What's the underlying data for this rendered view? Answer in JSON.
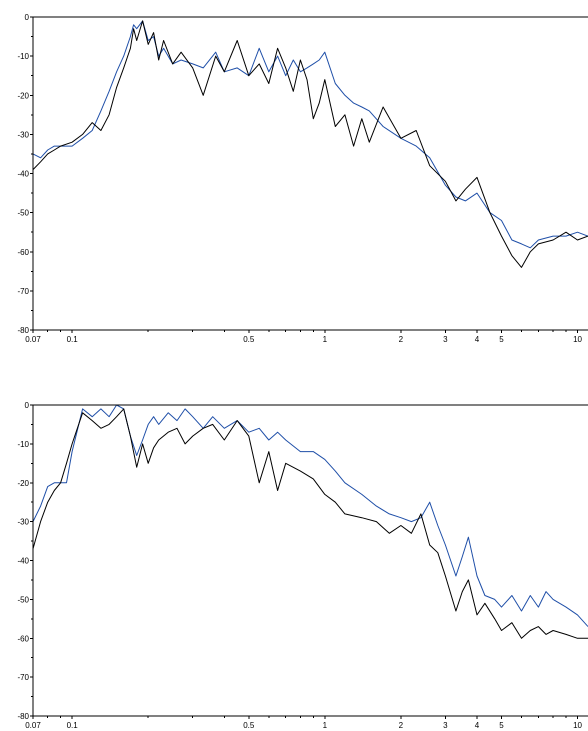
{
  "chart_data": [
    {
      "type": "line",
      "xscale": "log",
      "xlim": [
        0.07,
        11
      ],
      "ylim": [
        -80,
        0
      ],
      "x_ticks": [
        0.07,
        0.1,
        0.5,
        1,
        2,
        3,
        4,
        5,
        10
      ],
      "x_tick_labels": [
        "0.07",
        "0.1",
        "0.5",
        "1",
        "2",
        "3",
        "4",
        "5",
        "10"
      ],
      "y_ticks": [
        0,
        -10,
        -20,
        -30,
        -40,
        -50,
        -60,
        -70,
        -80
      ],
      "y_tick_labels": [
        "0",
        "-10",
        "-20",
        "-30",
        "-40",
        "-50",
        "-60",
        "-70",
        "-80"
      ],
      "grid": false,
      "series": [
        {
          "color": "#1f4fa8",
          "x": [
            0.07,
            0.075,
            0.08,
            0.085,
            0.09,
            0.1,
            0.11,
            0.12,
            0.13,
            0.14,
            0.15,
            0.16,
            0.17,
            0.175,
            0.18,
            0.19,
            0.2,
            0.21,
            0.22,
            0.23,
            0.25,
            0.27,
            0.3,
            0.33,
            0.37,
            0.4,
            0.45,
            0.5,
            0.55,
            0.6,
            0.65,
            0.7,
            0.75,
            0.8,
            0.85,
            0.9,
            0.95,
            1.0,
            1.1,
            1.2,
            1.3,
            1.4,
            1.5,
            1.7,
            2.0,
            2.3,
            2.6,
            3.0,
            3.3,
            3.6,
            4.0,
            4.5,
            5.0,
            5.5,
            6.0,
            6.5,
            7.0,
            8.0,
            9.0,
            10.0,
            11.0
          ],
          "y": [
            -35,
            -36,
            -34,
            -33,
            -33,
            -33,
            -31,
            -29,
            -24,
            -19,
            -14,
            -10,
            -5,
            -2,
            -3,
            -1,
            -6,
            -5,
            -10,
            -8,
            -12,
            -11,
            -12,
            -13,
            -9,
            -14,
            -13,
            -15,
            -8,
            -14,
            -10,
            -15,
            -11,
            -14,
            -13,
            -12,
            -11,
            -9,
            -17,
            -20,
            -22,
            -23,
            -24,
            -28,
            -31,
            -33,
            -36,
            -43,
            -46,
            -47,
            -45,
            -50,
            -52,
            -57,
            -58,
            -59,
            -57,
            -56,
            -56,
            -55,
            -56
          ]
        },
        {
          "color": "#000000",
          "x": [
            0.07,
            0.075,
            0.08,
            0.085,
            0.09,
            0.1,
            0.11,
            0.12,
            0.13,
            0.14,
            0.15,
            0.16,
            0.17,
            0.175,
            0.18,
            0.19,
            0.2,
            0.21,
            0.22,
            0.23,
            0.25,
            0.27,
            0.3,
            0.33,
            0.37,
            0.4,
            0.45,
            0.5,
            0.55,
            0.6,
            0.65,
            0.7,
            0.75,
            0.8,
            0.85,
            0.9,
            0.95,
            1.0,
            1.1,
            1.2,
            1.3,
            1.4,
            1.5,
            1.7,
            2.0,
            2.3,
            2.6,
            3.0,
            3.3,
            3.6,
            4.0,
            4.5,
            5.0,
            5.5,
            6.0,
            6.5,
            7.0,
            8.0,
            9.0,
            10.0,
            11.0
          ],
          "y": [
            -39,
            -37,
            -35,
            -34,
            -33,
            -32,
            -30,
            -27,
            -29,
            -25,
            -18,
            -13,
            -8,
            -3,
            -6,
            -1,
            -7,
            -4,
            -11,
            -6,
            -12,
            -9,
            -13,
            -20,
            -10,
            -14,
            -6,
            -15,
            -12,
            -17,
            -8,
            -13,
            -19,
            -11,
            -16,
            -26,
            -22,
            -16,
            -28,
            -25,
            -33,
            -26,
            -32,
            -23,
            -31,
            -29,
            -38,
            -42,
            -47,
            -44,
            -41,
            -50,
            -56,
            -61,
            -64,
            -60,
            -58,
            -57,
            -55,
            -57,
            -56
          ]
        }
      ]
    },
    {
      "type": "line",
      "xscale": "log",
      "xlim": [
        0.07,
        11
      ],
      "ylim": [
        -80,
        0
      ],
      "x_ticks": [
        0.07,
        0.1,
        0.5,
        1,
        2,
        3,
        4,
        5,
        10
      ],
      "x_tick_labels": [
        "0.07",
        "0.1",
        "0.5",
        "1",
        "2",
        "3",
        "4",
        "5",
        "10"
      ],
      "y_ticks": [
        0,
        -10,
        -20,
        -30,
        -40,
        -50,
        -60,
        -70,
        -80
      ],
      "y_tick_labels": [
        "0",
        "-10",
        "-20",
        "-30",
        "-40",
        "-50",
        "-60",
        "-70",
        "-80"
      ],
      "grid": false,
      "series": [
        {
          "color": "#1f4fa8",
          "x": [
            0.07,
            0.075,
            0.08,
            0.085,
            0.09,
            0.095,
            0.1,
            0.11,
            0.12,
            0.13,
            0.14,
            0.15,
            0.16,
            0.17,
            0.18,
            0.19,
            0.2,
            0.21,
            0.22,
            0.24,
            0.26,
            0.28,
            0.3,
            0.33,
            0.36,
            0.4,
            0.45,
            0.5,
            0.55,
            0.6,
            0.65,
            0.7,
            0.8,
            0.9,
            1.0,
            1.1,
            1.2,
            1.4,
            1.6,
            1.8,
            2.0,
            2.2,
            2.4,
            2.6,
            2.8,
            3.0,
            3.3,
            3.5,
            3.7,
            4.0,
            4.3,
            4.7,
            5.0,
            5.5,
            6.0,
            6.5,
            7.0,
            7.5,
            8.0,
            9.0,
            10.0,
            11.0
          ],
          "y": [
            -30,
            -26,
            -21,
            -20,
            -20,
            -20,
            -12,
            -1,
            -3,
            -1,
            -3,
            0,
            -1,
            -8,
            -13,
            -9,
            -5,
            -3,
            -5,
            -2,
            -4,
            -1,
            -3,
            -6,
            -3,
            -6,
            -4,
            -7,
            -6,
            -9,
            -7,
            -9,
            -12,
            -12,
            -14,
            -17,
            -20,
            -23,
            -26,
            -28,
            -29,
            -30,
            -29,
            -25,
            -31,
            -36,
            -44,
            -39,
            -34,
            -44,
            -49,
            -50,
            -52,
            -49,
            -53,
            -49,
            -52,
            -48,
            -50,
            -52,
            -54,
            -57
          ]
        },
        {
          "color": "#000000",
          "x": [
            0.07,
            0.075,
            0.08,
            0.085,
            0.09,
            0.095,
            0.1,
            0.11,
            0.12,
            0.13,
            0.14,
            0.15,
            0.16,
            0.17,
            0.18,
            0.19,
            0.2,
            0.21,
            0.22,
            0.24,
            0.26,
            0.28,
            0.3,
            0.33,
            0.36,
            0.4,
            0.45,
            0.5,
            0.55,
            0.6,
            0.65,
            0.7,
            0.8,
            0.9,
            1.0,
            1.1,
            1.2,
            1.4,
            1.6,
            1.8,
            2.0,
            2.2,
            2.4,
            2.6,
            2.8,
            3.0,
            3.3,
            3.5,
            3.7,
            4.0,
            4.3,
            4.7,
            5.0,
            5.5,
            6.0,
            6.5,
            7.0,
            7.5,
            8.0,
            9.0,
            10.0,
            11.0
          ],
          "y": [
            -37,
            -30,
            -25,
            -22,
            -20,
            -15,
            -10,
            -2,
            -4,
            -6,
            -5,
            -3,
            -1,
            -8,
            -16,
            -10,
            -15,
            -11,
            -9,
            -7,
            -6,
            -10,
            -8,
            -6,
            -5,
            -9,
            -4,
            -8,
            -20,
            -12,
            -22,
            -15,
            -17,
            -19,
            -23,
            -25,
            -28,
            -29,
            -30,
            -33,
            -31,
            -33,
            -28,
            -36,
            -38,
            -44,
            -53,
            -48,
            -45,
            -54,
            -51,
            -55,
            -58,
            -56,
            -60,
            -58,
            -57,
            -59,
            -58,
            -59,
            -60,
            -60
          ]
        }
      ]
    }
  ]
}
